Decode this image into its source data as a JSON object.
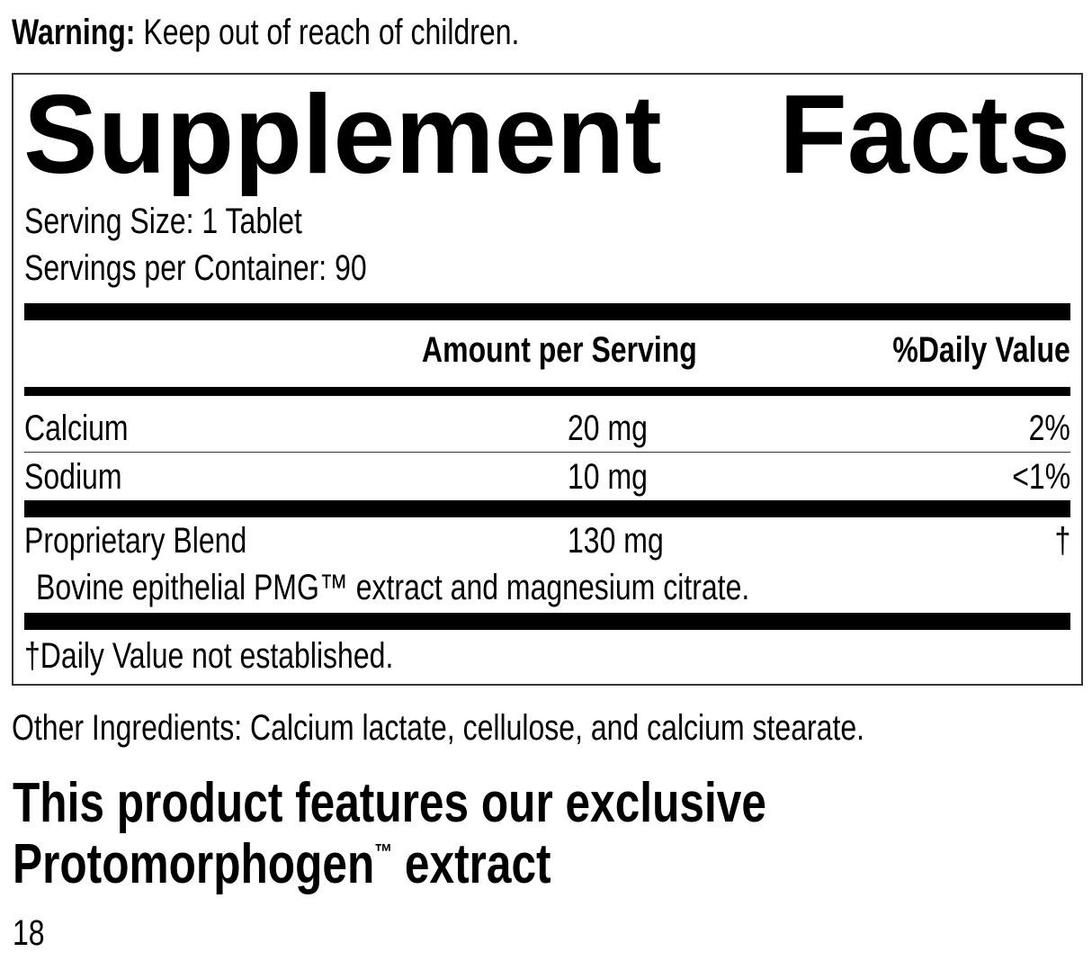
{
  "warning": {
    "label": "Warning:",
    "text": " Keep out of reach of children."
  },
  "panel": {
    "title_word1": "Supplement",
    "title_word2": "Facts",
    "serving_size": "Serving Size: 1 Tablet",
    "servings_per_container": "Servings per Container: 90",
    "header": {
      "amount": "Amount per Serving",
      "dv": "%Daily Value"
    },
    "rows": [
      {
        "name": "Calcium",
        "amount": "20 mg",
        "dv": "2%"
      },
      {
        "name": "Sodium",
        "amount": "10 mg",
        "dv": "<1%"
      },
      {
        "name": "Proprietary Blend",
        "amount": "130 mg",
        "dv": "†"
      }
    ],
    "blend_description": "Bovine epithelial PMG™ extract and magnesium citrate.",
    "footnote": "†Daily Value not established."
  },
  "other_ingredients": "Other Ingredients: Calcium lactate, cellulose, and calcium stearate.",
  "feature": {
    "line1": "This product features our exclusive",
    "line2_a": "Protomorphogen",
    "tm": "™",
    "line2_b": " extract"
  },
  "page_number": "18"
}
